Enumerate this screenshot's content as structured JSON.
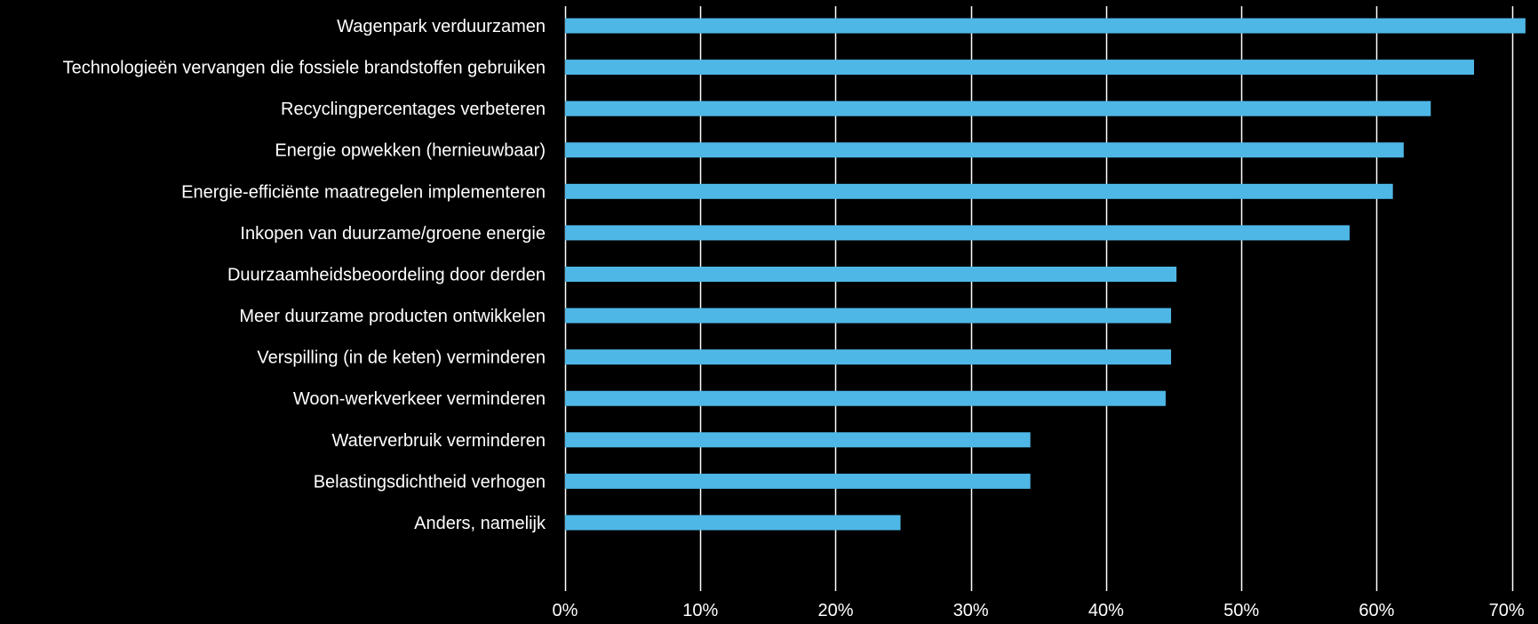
{
  "chart_data": {
    "type": "bar",
    "orientation": "horizontal",
    "title": "",
    "xlabel": "",
    "ylabel": "",
    "categories": [
      "Wagenpark verduurzamen",
      "Technologieën vervangen die fossiele brandstoffen gebruiken",
      "Recyclingpercentages verbeteren",
      "Energie opwekken (hernieuwbaar)",
      "Energie-efficiënte maatregelen implementeren",
      "Inkopen van duurzame/groene energie",
      "Duurzaamheidsbeoordeling door derden",
      "Meer duurzame producten ontwikkelen",
      "Verspilling (in de keten) verminderen",
      "Woon-werkverkeer verminderen",
      "Waterverbruik verminderen",
      "Belastingsdichtheid verhogen",
      "Anders, namelijk"
    ],
    "values": [
      71,
      67.2,
      64,
      62,
      61.2,
      58,
      45.2,
      44.8,
      44.8,
      44.4,
      34.4,
      34.4,
      24.8
    ],
    "xlim": [
      0,
      71.6
    ],
    "ticks": [
      0,
      10,
      20,
      30,
      40,
      50,
      60,
      70
    ],
    "tick_labels": [
      "0%",
      "10%",
      "20%",
      "30%",
      "40%",
      "50%",
      "60%",
      "70%"
    ],
    "grid": true,
    "legend": "none",
    "colors": {
      "background": "#000000",
      "bar": "#4fb7e6",
      "gridline": "#ffffff",
      "text": "#ffffff"
    }
  }
}
